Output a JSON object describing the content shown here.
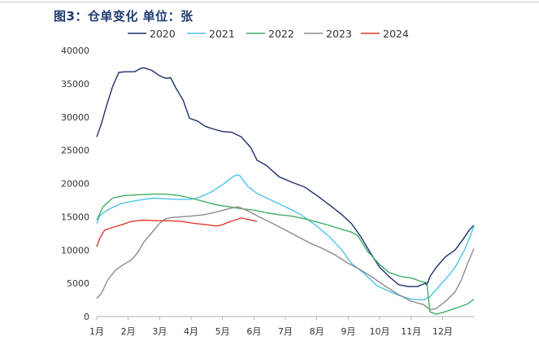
{
  "title": "图3：仓单变化  单位：张",
  "chart_data": {
    "type": "line",
    "title": "图3：仓单变化  单位：张",
    "xlabel": "",
    "ylabel": "",
    "ylim": [
      0,
      40000
    ],
    "xlim": [
      1,
      13
    ],
    "grid": false,
    "legend_position": "top",
    "x_ticks": [
      "1月",
      "2月",
      "3月",
      "4月",
      "5月",
      "6月",
      "7月",
      "8月",
      "9月",
      "10月",
      "11月",
      "12月"
    ],
    "y_ticks": [
      "0",
      "5000",
      "10000",
      "15000",
      "20000",
      "25000",
      "30000",
      "35000",
      "40000"
    ],
    "series": [
      {
        "name": "2020",
        "color": "#1f2f6b",
        "points": [
          [
            1.0,
            27000
          ],
          [
            1.15,
            29000
          ],
          [
            1.3,
            31500
          ],
          [
            1.5,
            34500
          ],
          [
            1.7,
            36700
          ],
          [
            1.9,
            36800
          ],
          [
            2.2,
            36800
          ],
          [
            2.4,
            37300
          ],
          [
            2.5,
            37400
          ],
          [
            2.75,
            37000
          ],
          [
            3.0,
            36200
          ],
          [
            3.2,
            35800
          ],
          [
            3.35,
            35900
          ],
          [
            3.5,
            34500
          ],
          [
            3.75,
            32500
          ],
          [
            3.95,
            29800
          ],
          [
            4.2,
            29400
          ],
          [
            4.45,
            28600
          ],
          [
            4.7,
            28200
          ],
          [
            5.0,
            27800
          ],
          [
            5.3,
            27700
          ],
          [
            5.6,
            27000
          ],
          [
            5.9,
            25400
          ],
          [
            6.1,
            23500
          ],
          [
            6.4,
            22700
          ],
          [
            6.8,
            21000
          ],
          [
            7.2,
            20200
          ],
          [
            7.6,
            19500
          ],
          [
            8.0,
            18200
          ],
          [
            8.4,
            16800
          ],
          [
            8.8,
            15300
          ],
          [
            9.1,
            14000
          ],
          [
            9.4,
            12000
          ],
          [
            9.7,
            9600
          ],
          [
            10.0,
            7400
          ],
          [
            10.3,
            6000
          ],
          [
            10.6,
            4800
          ],
          [
            10.9,
            4500
          ],
          [
            11.2,
            4500
          ],
          [
            11.45,
            5000
          ],
          [
            11.5,
            4700
          ],
          [
            11.6,
            6000
          ],
          [
            11.8,
            7400
          ],
          [
            12.1,
            9000
          ],
          [
            12.4,
            10000
          ],
          [
            12.65,
            11600
          ],
          [
            12.85,
            13000
          ],
          [
            13.0,
            13700
          ]
        ]
      },
      {
        "name": "2021",
        "color": "#4fc3e8",
        "points": [
          [
            1.0,
            14000
          ],
          [
            1.1,
            15200
          ],
          [
            1.4,
            16200
          ],
          [
            1.8,
            17000
          ],
          [
            2.1,
            17300
          ],
          [
            2.5,
            17600
          ],
          [
            2.8,
            17800
          ],
          [
            3.2,
            17700
          ],
          [
            3.6,
            17600
          ],
          [
            4.0,
            17600
          ],
          [
            4.3,
            18000
          ],
          [
            4.6,
            18600
          ],
          [
            5.0,
            19800
          ],
          [
            5.3,
            20900
          ],
          [
            5.45,
            21300
          ],
          [
            5.55,
            21200
          ],
          [
            5.8,
            19600
          ],
          [
            6.1,
            18500
          ],
          [
            6.5,
            17600
          ],
          [
            7.0,
            16500
          ],
          [
            7.5,
            15300
          ],
          [
            8.0,
            13600
          ],
          [
            8.4,
            12000
          ],
          [
            8.8,
            10000
          ],
          [
            9.1,
            8000
          ],
          [
            9.5,
            6500
          ],
          [
            9.9,
            4700
          ],
          [
            10.2,
            4000
          ],
          [
            10.6,
            3200
          ],
          [
            11.0,
            2600
          ],
          [
            11.4,
            2500
          ],
          [
            11.6,
            3000
          ],
          [
            11.9,
            4600
          ],
          [
            12.2,
            6200
          ],
          [
            12.4,
            7400
          ],
          [
            12.7,
            10000
          ],
          [
            12.9,
            12300
          ],
          [
            13.0,
            13600
          ]
        ]
      },
      {
        "name": "2022",
        "color": "#3dae63",
        "points": [
          [
            1.0,
            14500
          ],
          [
            1.2,
            16500
          ],
          [
            1.5,
            17800
          ],
          [
            1.9,
            18200
          ],
          [
            2.3,
            18300
          ],
          [
            2.8,
            18400
          ],
          [
            3.2,
            18400
          ],
          [
            3.6,
            18200
          ],
          [
            4.0,
            17800
          ],
          [
            4.4,
            17300
          ],
          [
            4.8,
            16800
          ],
          [
            5.2,
            16500
          ],
          [
            5.6,
            16200
          ],
          [
            6.0,
            16000
          ],
          [
            6.4,
            15600
          ],
          [
            6.8,
            15300
          ],
          [
            7.2,
            15100
          ],
          [
            7.6,
            14700
          ],
          [
            8.0,
            14200
          ],
          [
            8.4,
            13700
          ],
          [
            8.8,
            13100
          ],
          [
            9.1,
            12700
          ],
          [
            9.3,
            12200
          ],
          [
            9.6,
            9900
          ],
          [
            10.0,
            7800
          ],
          [
            10.3,
            6600
          ],
          [
            10.7,
            6000
          ],
          [
            11.0,
            5800
          ],
          [
            11.3,
            5300
          ],
          [
            11.5,
            5100
          ],
          [
            11.6,
            700
          ],
          [
            11.8,
            350
          ],
          [
            12.0,
            600
          ],
          [
            12.2,
            900
          ],
          [
            12.5,
            1400
          ],
          [
            12.8,
            1900
          ],
          [
            13.0,
            2600
          ]
        ]
      },
      {
        "name": "2023",
        "color": "#8c8c8c",
        "points": [
          [
            1.0,
            2700
          ],
          [
            1.15,
            3500
          ],
          [
            1.35,
            5500
          ],
          [
            1.6,
            7000
          ],
          [
            1.85,
            7800
          ],
          [
            2.1,
            8500
          ],
          [
            2.3,
            9600
          ],
          [
            2.5,
            11200
          ],
          [
            2.75,
            12600
          ],
          [
            3.0,
            14000
          ],
          [
            3.2,
            14700
          ],
          [
            3.4,
            14900
          ],
          [
            3.7,
            15000
          ],
          [
            4.0,
            15100
          ],
          [
            4.4,
            15300
          ],
          [
            4.8,
            15700
          ],
          [
            5.2,
            16200
          ],
          [
            5.5,
            16500
          ],
          [
            5.8,
            15900
          ],
          [
            6.2,
            14900
          ],
          [
            6.6,
            14000
          ],
          [
            7.0,
            13000
          ],
          [
            7.4,
            12000
          ],
          [
            7.8,
            11000
          ],
          [
            8.2,
            10200
          ],
          [
            8.6,
            9200
          ],
          [
            9.0,
            8000
          ],
          [
            9.4,
            7000
          ],
          [
            9.8,
            5800
          ],
          [
            10.2,
            4500
          ],
          [
            10.6,
            3300
          ],
          [
            11.0,
            2300
          ],
          [
            11.4,
            1800
          ],
          [
            11.6,
            1000
          ],
          [
            11.8,
            1200
          ],
          [
            12.1,
            2300
          ],
          [
            12.4,
            3700
          ],
          [
            12.6,
            5500
          ],
          [
            12.8,
            8000
          ],
          [
            13.0,
            10200
          ]
        ]
      },
      {
        "name": "2024",
        "color": "#e03a2f",
        "points": [
          [
            1.0,
            10500
          ],
          [
            1.1,
            11800
          ],
          [
            1.25,
            13000
          ],
          [
            1.5,
            13400
          ],
          [
            1.8,
            13800
          ],
          [
            2.1,
            14300
          ],
          [
            2.5,
            14500
          ],
          [
            2.9,
            14400
          ],
          [
            3.3,
            14400
          ],
          [
            3.7,
            14300
          ],
          [
            4.1,
            14000
          ],
          [
            4.5,
            13800
          ],
          [
            4.8,
            13600
          ],
          [
            5.0,
            13800
          ],
          [
            5.2,
            14200
          ],
          [
            5.4,
            14500
          ],
          [
            5.6,
            14800
          ],
          [
            5.8,
            14600
          ],
          [
            6.1,
            14300
          ]
        ]
      }
    ]
  }
}
